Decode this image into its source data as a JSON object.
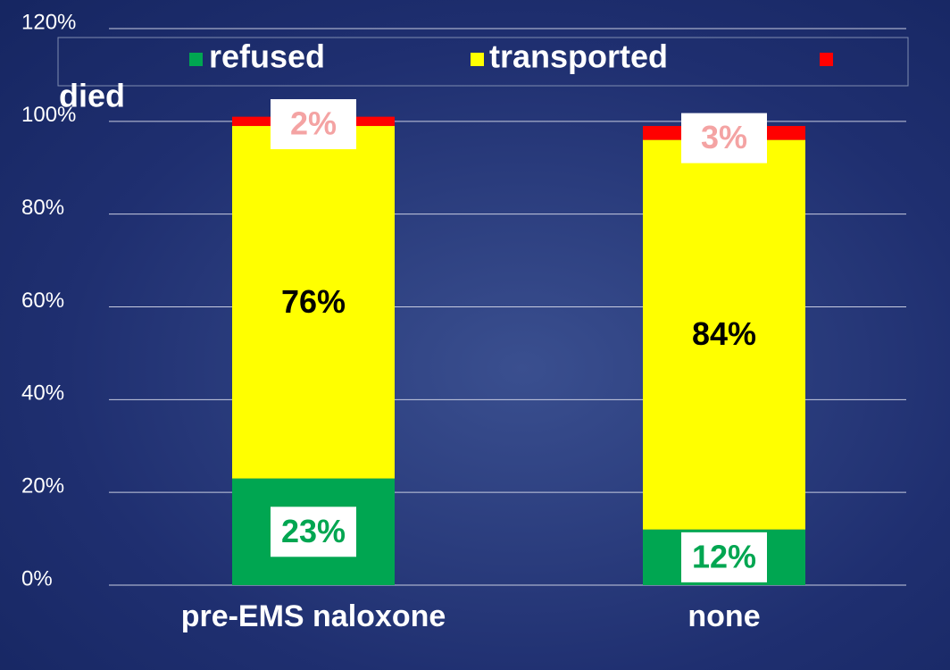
{
  "chart_data": {
    "type": "stacked_bar",
    "categories": [
      "pre-EMS naloxone",
      "none"
    ],
    "series": [
      {
        "name": "refused",
        "color": "#00a651",
        "values": [
          23,
          12
        ],
        "value_labels": [
          "23%",
          "12%"
        ]
      },
      {
        "name": "transported",
        "color": "#ffff00",
        "values": [
          76,
          84
        ],
        "value_labels": [
          "76%",
          "84%"
        ]
      },
      {
        "name": "died",
        "color": "#ff0000",
        "values": [
          2,
          3
        ],
        "value_labels": [
          "2%",
          "3%"
        ]
      }
    ],
    "ylim": [
      0,
      120
    ],
    "yticks": [
      {
        "value": 0,
        "label": "0%"
      },
      {
        "value": 20,
        "label": "20%"
      },
      {
        "value": 40,
        "label": "40%"
      },
      {
        "value": 60,
        "label": "60%"
      },
      {
        "value": 80,
        "label": "80%"
      },
      {
        "value": 100,
        "label": "100%"
      },
      {
        "value": 120,
        "label": "120%"
      }
    ],
    "grid": true,
    "legend": "top"
  }
}
